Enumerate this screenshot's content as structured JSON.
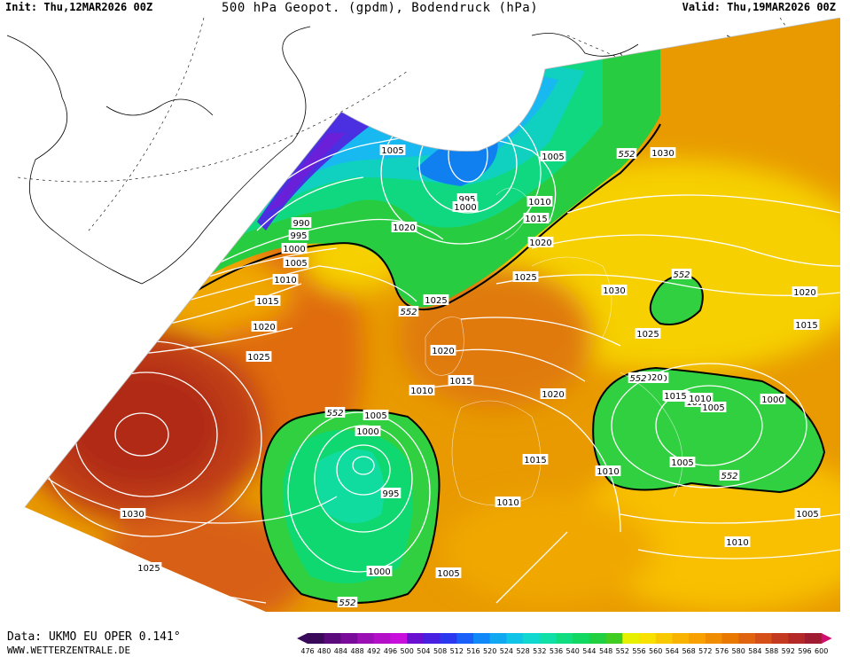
{
  "header": {
    "init": "Init: Thu,12MAR2026 00Z",
    "title": "500 hPa Geopot. (gpdm), Bodendruck (hPa)",
    "valid": "Valid: Thu,19MAR2026 00Z"
  },
  "footer": {
    "source": "Data: UKMO EU OPER 0.141°",
    "site": "WWW.WETTERZENTRALE.DE"
  },
  "scale": {
    "values": [
      "476",
      "480",
      "484",
      "488",
      "492",
      "496",
      "500",
      "504",
      "508",
      "512",
      "516",
      "520",
      "524",
      "528",
      "532",
      "536",
      "540",
      "544",
      "548",
      "552",
      "556",
      "560",
      "564",
      "568",
      "572",
      "576",
      "580",
      "584",
      "588",
      "592",
      "596",
      "600"
    ],
    "colors": [
      "#3a0a5a",
      "#5a0a7a",
      "#7a0a9a",
      "#9a10b4",
      "#b410c8",
      "#c810dc",
      "#6a10d0",
      "#4a20e0",
      "#2a38f0",
      "#1a60f8",
      "#1088f8",
      "#10a8f0",
      "#10c4e8",
      "#10d8d0",
      "#10e0a8",
      "#10dc80",
      "#10d860",
      "#20d040",
      "#40cc20",
      "#e8f000",
      "#f8e000",
      "#f8c800",
      "#f8b400",
      "#f8a000",
      "#f08c00",
      "#e87800",
      "#e06410",
      "#d45018",
      "#c43a20",
      "#b42828",
      "#a01c30",
      "#d01070"
    ]
  },
  "map_labels": {
    "isobars": [
      {
        "text": "1005"
      },
      {
        "text": "990"
      },
      {
        "text": "995"
      },
      {
        "text": "1000"
      },
      {
        "text": "1005"
      },
      {
        "text": "1010"
      },
      {
        "text": "1015"
      },
      {
        "text": "1020"
      },
      {
        "text": "1025"
      },
      {
        "text": "1020"
      },
      {
        "text": "995"
      },
      {
        "text": "1000"
      },
      {
        "text": "1005"
      },
      {
        "text": "1010"
      },
      {
        "text": "1015"
      },
      {
        "text": "1020"
      },
      {
        "text": "1025"
      },
      {
        "text": "1025"
      },
      {
        "text": "1030"
      },
      {
        "text": "1030"
      },
      {
        "text": "1020"
      },
      {
        "text": "1015"
      },
      {
        "text": "1020"
      },
      {
        "text": "1010"
      },
      {
        "text": "1025"
      },
      {
        "text": "1020"
      },
      {
        "text": "1015"
      },
      {
        "text": "1010"
      },
      {
        "text": "1005"
      },
      {
        "text": "1000"
      },
      {
        "text": "995"
      },
      {
        "text": "1000"
      },
      {
        "text": "1005"
      },
      {
        "text": "1015"
      },
      {
        "text": "1010"
      },
      {
        "text": "1005"
      },
      {
        "text": "1030"
      },
      {
        "text": "1025"
      },
      {
        "text": "1020"
      },
      {
        "text": "1015"
      },
      {
        "text": "1010"
      },
      {
        "text": "1005"
      },
      {
        "text": "1000"
      },
      {
        "text": "1005"
      },
      {
        "text": "1010"
      },
      {
        "text": "1005"
      },
      {
        "text": "1010"
      },
      {
        "text": "1015"
      },
      {
        "text": "1020"
      }
    ],
    "geopotential": [
      {
        "text": "552"
      },
      {
        "text": "552"
      },
      {
        "text": "552"
      },
      {
        "text": "552"
      },
      {
        "text": "552"
      },
      {
        "text": "552"
      },
      {
        "text": "552"
      }
    ]
  }
}
